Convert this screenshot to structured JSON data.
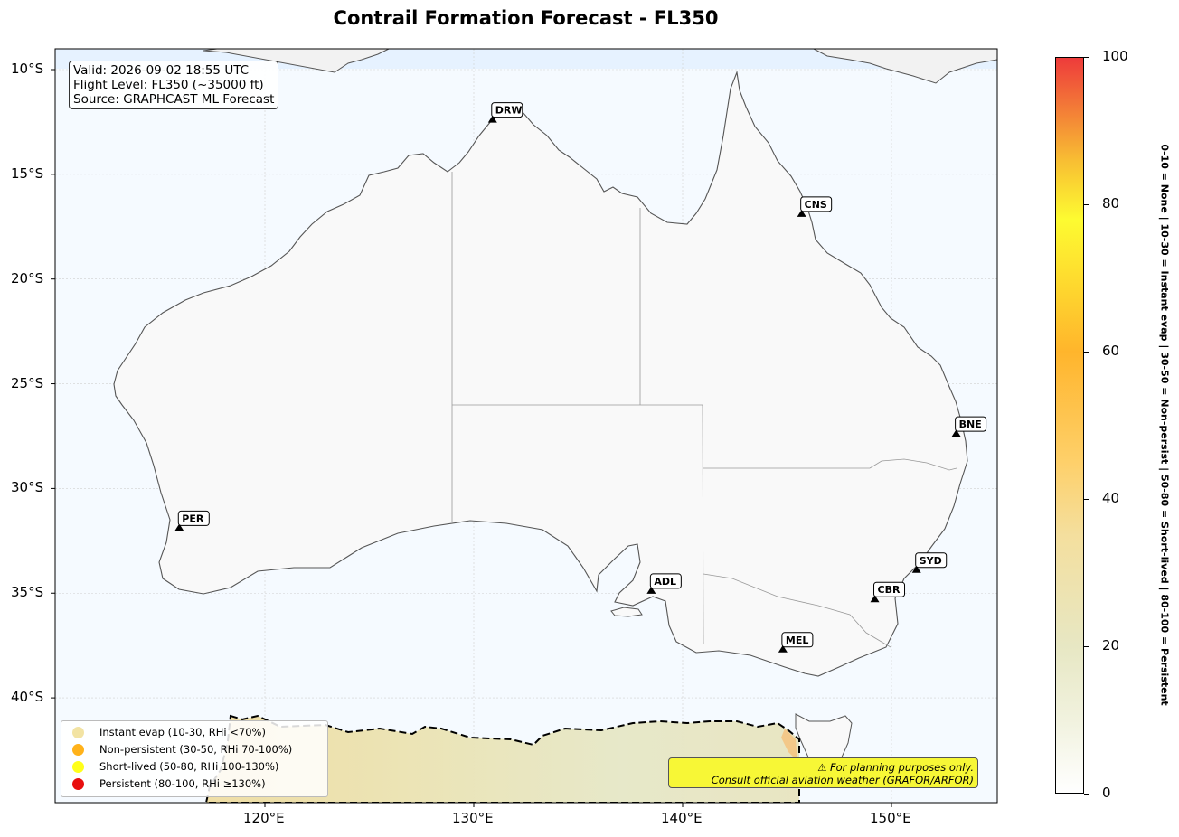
{
  "title": "Contrail Formation Forecast - FL350",
  "info_box": {
    "valid": "Valid: 2026-09-02 18:55 UTC",
    "flight_level": "Flight Level: FL350 (~35000 ft)",
    "source": "Source: GRAPHCAST ML Forecast"
  },
  "map": {
    "projection": "plate carree",
    "lon_range": [
      110,
      155
    ],
    "lat_range": [
      -45,
      -9
    ],
    "grid": true,
    "ocean_color": "#f5faff",
    "land_color": "#f9f9f9",
    "lon_ticks": [
      {
        "value": 120,
        "label": "120°E"
      },
      {
        "value": 130,
        "label": "130°E"
      },
      {
        "value": 140,
        "label": "140°E"
      },
      {
        "value": 150,
        "label": "150°E"
      }
    ],
    "lat_ticks": [
      {
        "value": -10,
        "label": "10°S"
      },
      {
        "value": -15,
        "label": "15°S"
      },
      {
        "value": -20,
        "label": "20°S"
      },
      {
        "value": -25,
        "label": "25°S"
      },
      {
        "value": -30,
        "label": "30°S"
      },
      {
        "value": -35,
        "label": "35°S"
      },
      {
        "value": -40,
        "label": "40°S"
      }
    ]
  },
  "airports": [
    {
      "code": "DRW",
      "lon": 130.9,
      "lat": -12.4
    },
    {
      "code": "CNS",
      "lon": 145.7,
      "lat": -16.9
    },
    {
      "code": "BNE",
      "lon": 153.1,
      "lat": -27.4
    },
    {
      "code": "PER",
      "lon": 115.9,
      "lat": -31.9
    },
    {
      "code": "ADL",
      "lon": 138.5,
      "lat": -34.9
    },
    {
      "code": "SYD",
      "lon": 151.2,
      "lat": -33.9
    },
    {
      "code": "CBR",
      "lon": 149.2,
      "lat": -35.3
    },
    {
      "code": "MEL",
      "lon": 144.8,
      "lat": -37.7
    }
  ],
  "contrail_region": {
    "description_band": "Instant evap",
    "value_range": [
      10,
      30
    ],
    "lat_north": -41.3,
    "lon_range": [
      117.5,
      145.5
    ]
  },
  "legend": [
    {
      "label": "Instant evap (10-30, RHi <70%)",
      "color": "#f2e3a3"
    },
    {
      "label": "Non-persistent (30-50, RHi 70-100%)",
      "color": "#ffb21a"
    },
    {
      "label": "Short-lived (50-80, RHi 100-130%)",
      "color": "#ffff1a"
    },
    {
      "label": "Persistent (80-100, RHi ≥130%)",
      "color": "#e80f0f"
    }
  ],
  "disclaimer": {
    "line1": "⚠ For planning purposes only.",
    "line2": "Consult official aviation weather (GRAFOR/ARFOR)"
  },
  "colorbar": {
    "range": [
      0,
      100
    ],
    "ticks": [
      {
        "value": 0,
        "label": "0"
      },
      {
        "value": 20,
        "label": "20"
      },
      {
        "value": 40,
        "label": "40"
      },
      {
        "value": 60,
        "label": "60"
      },
      {
        "value": 80,
        "label": "80"
      },
      {
        "value": 100,
        "label": "100"
      }
    ],
    "side_label": "0-10 = None  |  10-30 = Instant evap  |  30-50 = Non-persist  |  50-80 = Short-lived  |  80-100 = Persistent"
  }
}
